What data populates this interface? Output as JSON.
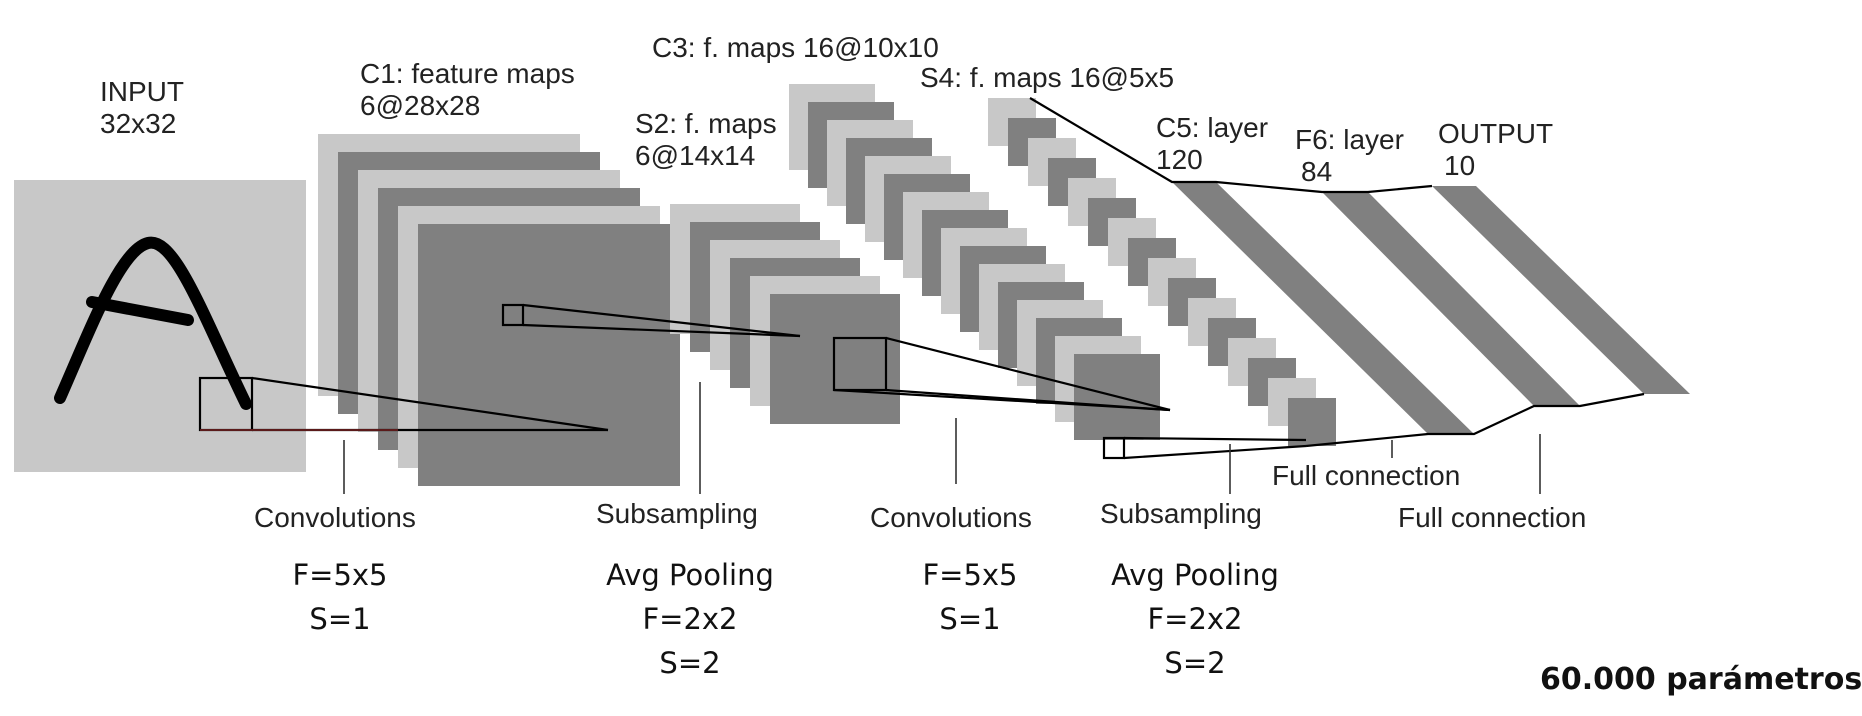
{
  "layers": {
    "input": {
      "title": "INPUT",
      "size": "32x32"
    },
    "c1": {
      "title": "C1: feature maps",
      "size": "6@28x28"
    },
    "s2": {
      "title": "S2: f. maps",
      "size": "6@14x14"
    },
    "c3": {
      "title": "C3: f. maps 16@10x10"
    },
    "s4": {
      "title": "S4: f. maps 16@5x5"
    },
    "c5": {
      "title": "C5: layer",
      "size": "120"
    },
    "f6": {
      "title": "F6: layer",
      "size": "84"
    },
    "output": {
      "title": "OUTPUT",
      "size": "10"
    }
  },
  "operations": {
    "conv1": {
      "label": "Convolutions",
      "params": [
        "F=5x5",
        "S=1"
      ]
    },
    "pool1": {
      "label": "Subsampling",
      "params": [
        "Avg Pooling",
        "F=2x2",
        "S=2"
      ]
    },
    "conv2": {
      "label": "Convolutions",
      "params": [
        "F=5x5",
        "S=1"
      ]
    },
    "pool2": {
      "label": "Subsampling",
      "params": [
        "Avg Pooling",
        "F=2x2",
        "S=2"
      ]
    },
    "full1": {
      "label": "Full connection"
    },
    "full2": {
      "label": "Full connection"
    }
  },
  "total_params": "60.000 parámetros",
  "colors": {
    "light_gray": "#c8c8c8",
    "dark_gray": "#808080",
    "stroke": "#000000",
    "text": "#222222"
  }
}
